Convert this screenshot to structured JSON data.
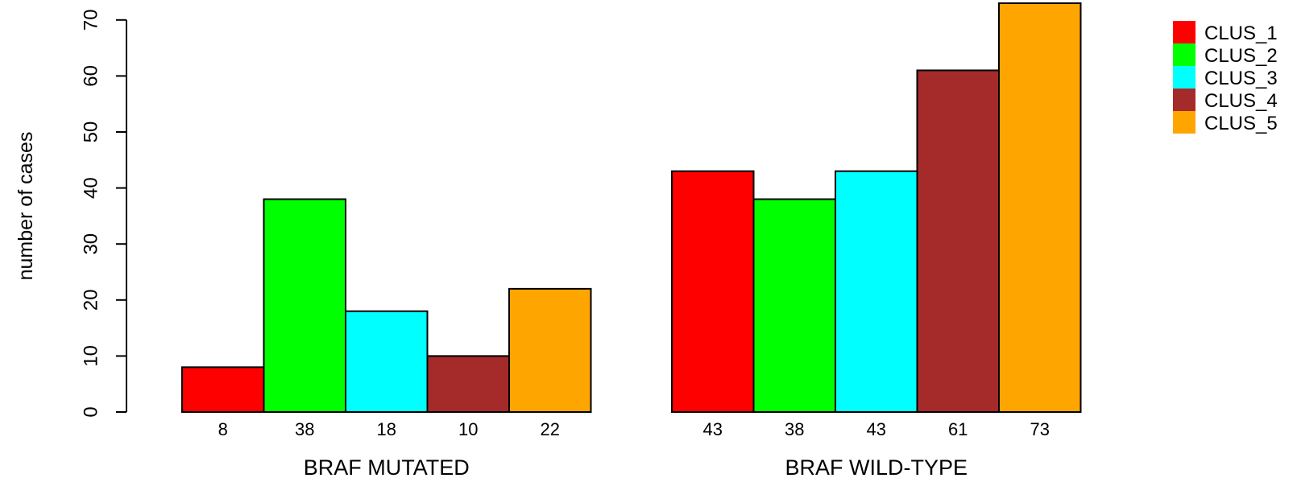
{
  "chart_data": {
    "type": "bar",
    "title": "",
    "xlabel": "",
    "ylabel": "number of cases",
    "ylim": [
      0,
      73
    ],
    "yticks": [
      0,
      10,
      20,
      30,
      40,
      50,
      60,
      70
    ],
    "grid": false,
    "legend_position": "top-right",
    "categories": [
      "BRAF MUTATED",
      "BRAF WILD-TYPE"
    ],
    "series": [
      {
        "name": "CLUS_1",
        "color": "#ff0000",
        "values": [
          8,
          43
        ]
      },
      {
        "name": "CLUS_2",
        "color": "#00ff00",
        "values": [
          38,
          38
        ]
      },
      {
        "name": "CLUS_3",
        "color": "#00ffff",
        "values": [
          18,
          43
        ]
      },
      {
        "name": "CLUS_4",
        "color": "#a52a2a",
        "values": [
          10,
          61
        ]
      },
      {
        "name": "CLUS_5",
        "color": "#ffa500",
        "values": [
          22,
          73
        ]
      }
    ]
  }
}
